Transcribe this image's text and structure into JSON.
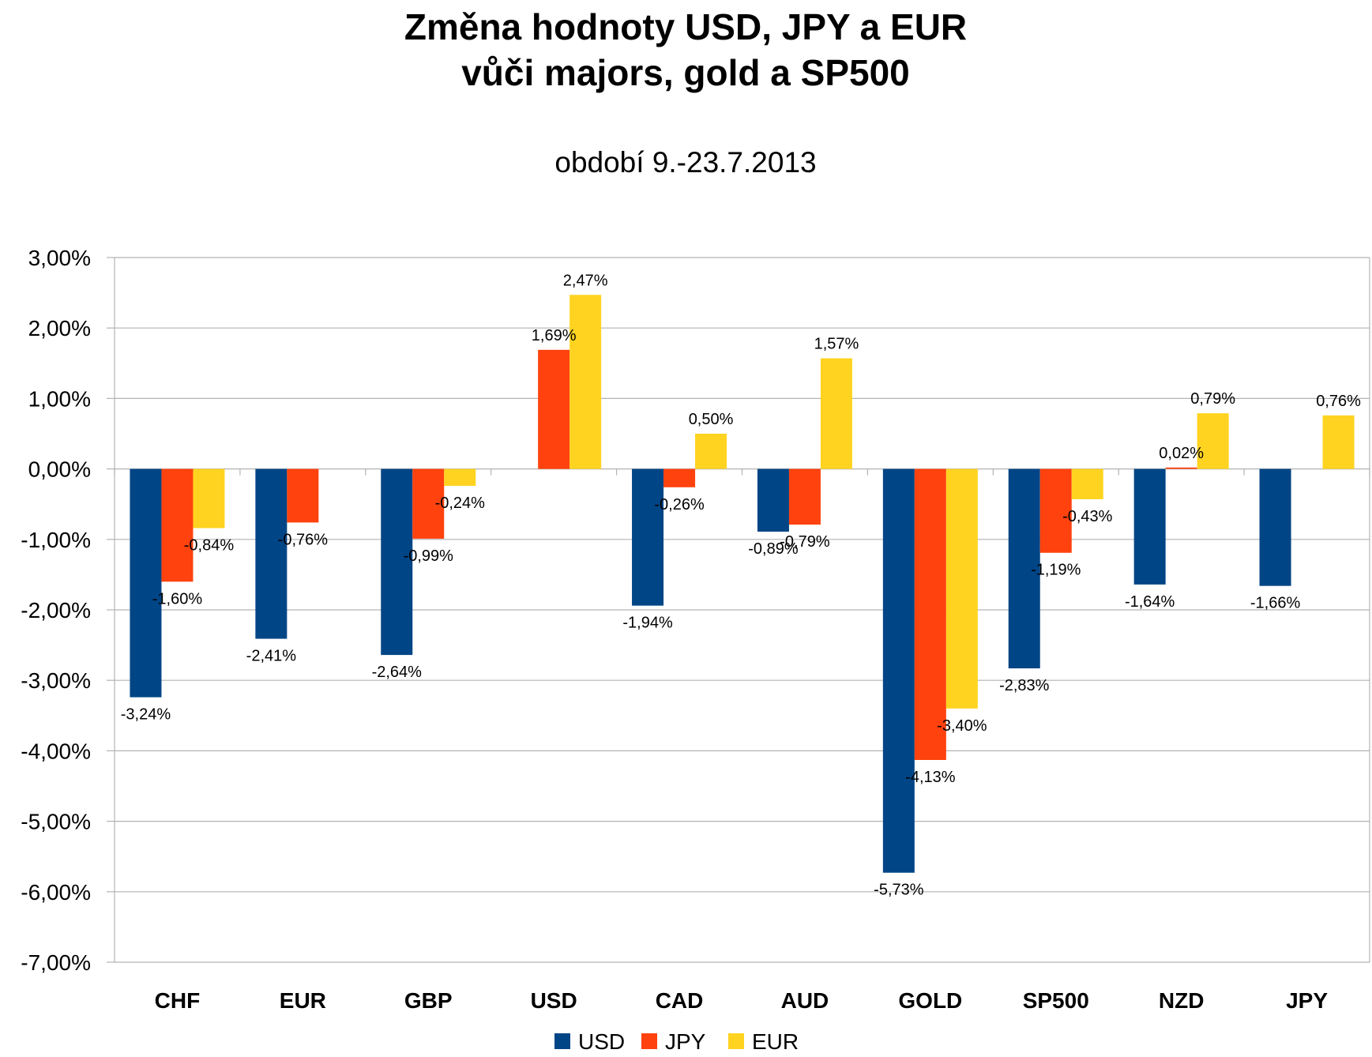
{
  "chart_data": {
    "type": "bar",
    "title_line1": "Změna hodnoty USD, JPY a EUR",
    "title_line2": "vůči majors, gold a SP500",
    "subtitle": "období 9.-23.7.2013",
    "categories": [
      "CHF",
      "EUR",
      "GBP",
      "USD",
      "CAD",
      "AUD",
      "GOLD",
      "SP500",
      "NZD",
      "JPY"
    ],
    "series": [
      {
        "name": "USD",
        "color": "#004586",
        "values": [
          -3.24,
          -2.41,
          -2.64,
          null,
          -1.94,
          -0.89,
          -5.73,
          -2.83,
          -1.64,
          -1.66
        ],
        "labels": [
          "-3,24%",
          "-2,41%",
          "-2,64%",
          null,
          "-1,94%",
          "-0,89%",
          "-5,73%",
          "-2,83%",
          "-1,64%",
          "-1,66%"
        ]
      },
      {
        "name": "JPY",
        "color": "#ff420e",
        "values": [
          -1.6,
          -0.76,
          -0.99,
          1.69,
          -0.26,
          -0.79,
          -4.13,
          -1.19,
          0.02,
          null
        ],
        "labels": [
          "-1,60%",
          "-0,76%",
          "-0,99%",
          "1,69%",
          "-0,26%",
          "-0,79%",
          "-4,13%",
          "-1,19%",
          "0,02%",
          null
        ]
      },
      {
        "name": "EUR",
        "color": "#ffd320",
        "values": [
          -0.84,
          null,
          -0.24,
          2.47,
          0.5,
          1.57,
          -3.4,
          -0.43,
          0.79,
          0.76
        ],
        "labels": [
          "-0,84%",
          null,
          "-0,24%",
          "2,47%",
          "0,50%",
          "1,57%",
          "-3,40%",
          "-0,43%",
          "0,79%",
          "0,76%"
        ]
      }
    ],
    "ylim": [
      -7,
      3
    ],
    "yticks": [
      {
        "value": 3,
        "label": "3,00%"
      },
      {
        "value": 2,
        "label": "2,00%"
      },
      {
        "value": 1,
        "label": "1,00%"
      },
      {
        "value": 0,
        "label": "0,00%"
      },
      {
        "value": -1,
        "label": "-1,00%"
      },
      {
        "value": -2,
        "label": "-2,00%"
      },
      {
        "value": -3,
        "label": "-3,00%"
      },
      {
        "value": -4,
        "label": "-4,00%"
      },
      {
        "value": -5,
        "label": "-5,00%"
      },
      {
        "value": -6,
        "label": "-6,00%"
      },
      {
        "value": -7,
        "label": "-7,00%"
      }
    ],
    "grid": true,
    "legend_position": "bottom"
  }
}
